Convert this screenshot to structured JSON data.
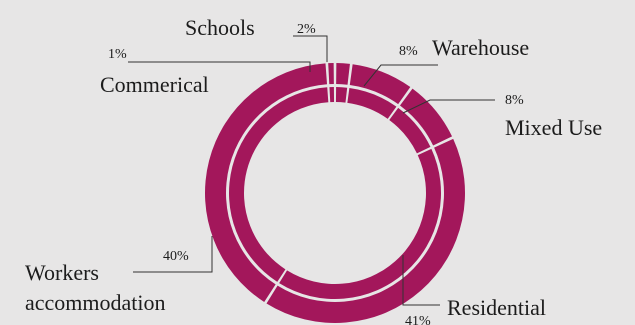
{
  "chart_data": {
    "type": "pie",
    "style": "donut",
    "color": "#a3175b",
    "background": "#e7e6e6",
    "slices": [
      {
        "label": "Schools",
        "value": 2,
        "value_label": "2%"
      },
      {
        "label": "Warehouse",
        "value": 8,
        "value_label": "8%"
      },
      {
        "label": "Mixed Use",
        "value": 8,
        "value_label": "8%"
      },
      {
        "label": "Residential",
        "value": 41,
        "value_label": "41%"
      },
      {
        "label": "Workers",
        "label_line2": "accommodation",
        "value": 40,
        "value_label": "40%"
      },
      {
        "label": "Commerical",
        "value": 1,
        "value_label": "1%"
      }
    ]
  }
}
